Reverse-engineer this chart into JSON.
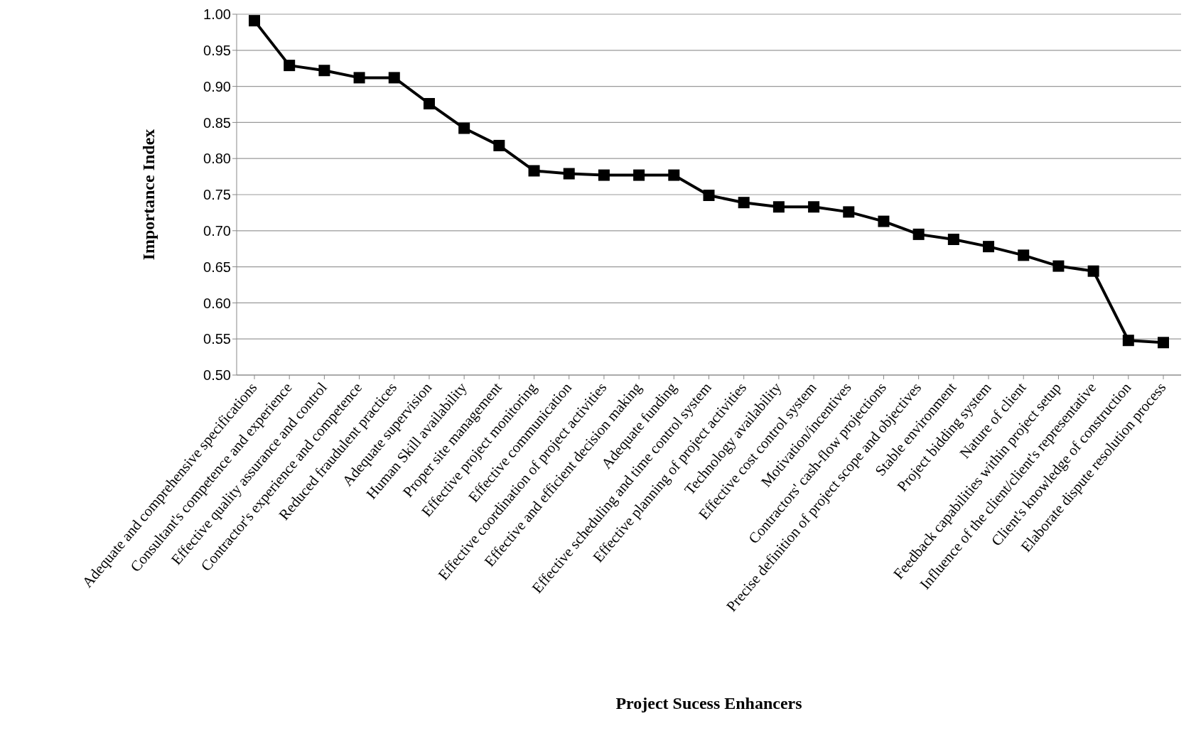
{
  "chart_data": {
    "type": "line",
    "xlabel": "Project Sucess Enhancers",
    "ylabel": "Importance Index",
    "categories": [
      "Adequate and comprehensive specifications",
      "Consultant's competence and experience",
      "Effective quality assurance and control",
      "Contractor's experience and competence",
      "Reduced fraudulent practices",
      "Adequate supervision",
      "Human Skill availability",
      "Proper site management",
      "Effective project monitoring",
      "Effective communication",
      "Effective coordination of project activities",
      "Effective and efficient decision making",
      "Adequate funding",
      "Effective scheduling and time control system",
      "Effective planning of project activities",
      "Technology availability",
      "Effective cost control system",
      "Motivation/incentives",
      "Contractors' cash-flow projections",
      "Precise definition of project scope and objectives",
      "Stable environment",
      "Project bidding system",
      "Nature of client",
      "Feedback capabilities within project setup",
      "Influence of the client/client's representative",
      "Client's knowledge of construction",
      "Elaborate dispute resolution process"
    ],
    "values": [
      0.991,
      0.929,
      0.922,
      0.912,
      0.912,
      0.876,
      0.842,
      0.818,
      0.783,
      0.779,
      0.777,
      0.777,
      0.777,
      0.749,
      0.739,
      0.733,
      0.733,
      0.726,
      0.713,
      0.695,
      0.688,
      0.678,
      0.666,
      0.651,
      0.644,
      0.548,
      0.545
    ],
    "color": "#000000",
    "ylim": [
      0.5,
      1.0
    ],
    "yticks": [
      {
        "value": 0.5,
        "label": "0.50"
      },
      {
        "value": 0.55,
        "label": "0.55"
      },
      {
        "value": 0.6,
        "label": "0.60"
      },
      {
        "value": 0.65,
        "label": "0.65"
      },
      {
        "value": 0.7,
        "label": "0.70"
      },
      {
        "value": 0.75,
        "label": "0.75"
      },
      {
        "value": 0.8,
        "label": "0.80"
      },
      {
        "value": 0.85,
        "label": "0.85"
      },
      {
        "value": 0.9,
        "label": "0.90"
      },
      {
        "value": 0.95,
        "label": "0.95"
      },
      {
        "value": 1.0,
        "label": "1.00"
      }
    ],
    "grid": "y",
    "marker": "square",
    "line_style": "solid",
    "legend": false
  }
}
